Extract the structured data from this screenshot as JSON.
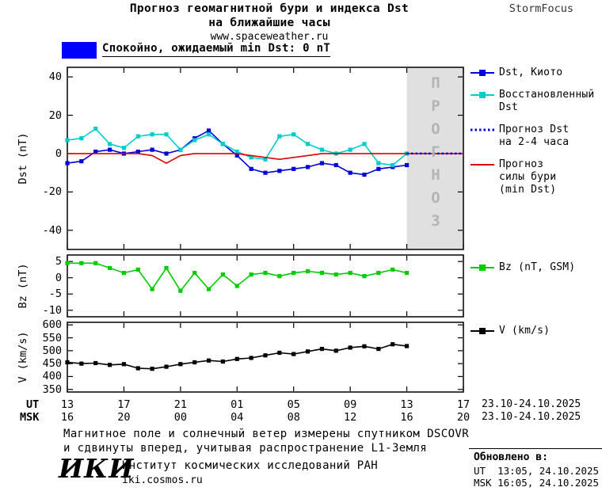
{
  "header": {
    "title_line1": "Прогноз геомагнитной бури и индекса Dst",
    "title_line2": "на ближайшие часы",
    "website": "www.spaceweather.ru",
    "brand": "StormFocus"
  },
  "banner": {
    "label": "Спокойно, ожидаемый min Dst: 0 nT",
    "color": "#0000ff"
  },
  "forecast": {
    "label": "ПРОГНОЗ",
    "region_color": "#e0e0e0",
    "text_color": "#b4b4b4"
  },
  "chart_data": [
    {
      "id": "dst",
      "type": "line",
      "title": "",
      "xlabel": "",
      "ylabel": "Dst (nT)",
      "ylim": [
        -50,
        45
      ],
      "yticks": [
        40,
        20,
        0,
        -20,
        -40
      ],
      "xlim": [
        0,
        28
      ],
      "xticks": [
        0,
        4,
        8,
        12,
        16,
        20,
        24,
        28
      ],
      "grid": false,
      "legend_position": "right",
      "forecast_region": {
        "x0": 24,
        "x1": 28
      },
      "series": [
        {
          "id": "dst_kyoto",
          "name": "Dst, Киото",
          "color": "#0000dd",
          "marker": "square",
          "x": [
            0,
            1,
            2,
            3,
            4,
            5,
            6,
            7,
            8,
            9,
            10,
            11,
            12,
            13,
            14,
            15,
            16,
            17,
            18,
            19,
            20,
            21,
            22,
            23,
            24
          ],
          "values": [
            -5,
            -4,
            1,
            2,
            0,
            1,
            2,
            0,
            2,
            8,
            12,
            5,
            -1,
            -8,
            -10,
            -9,
            -8,
            -7,
            -5,
            -6,
            -10,
            -11,
            -8,
            -7,
            -6
          ]
        },
        {
          "id": "dst_restored",
          "name": "Восстановленный Dst",
          "color": "#00cccc",
          "marker": "square",
          "x": [
            0,
            1,
            2,
            3,
            4,
            5,
            6,
            7,
            8,
            9,
            10,
            11,
            12,
            13,
            14,
            15,
            16,
            17,
            18,
            19,
            20,
            21,
            22,
            23,
            24
          ],
          "values": [
            7,
            8,
            13,
            5,
            3,
            9,
            10,
            10,
            2,
            7,
            10,
            5,
            1,
            -2,
            -3,
            9,
            10,
            5,
            2,
            0,
            2,
            5,
            -5,
            -6,
            0
          ]
        },
        {
          "id": "storm_forecast",
          "name": "Прогноз силы бури (min Dst)",
          "color": "#dd0000",
          "marker": "none",
          "x": [
            0,
            1,
            2,
            3,
            4,
            5,
            6,
            7,
            8,
            9,
            10,
            11,
            12,
            13,
            14,
            15,
            16,
            17,
            18,
            19,
            20,
            21,
            22,
            23,
            24,
            25,
            26,
            27,
            28
          ],
          "values": [
            0,
            0,
            0,
            0,
            0,
            0,
            -1,
            -5,
            -1,
            0,
            0,
            0,
            0,
            -1,
            -2,
            -3,
            -2,
            -1,
            0,
            0,
            0,
            0,
            0,
            0,
            0,
            0,
            0,
            0,
            0
          ]
        },
        {
          "id": "dst_forecast",
          "name": "Прогноз Dst на 2-4 часа",
          "color": "#0000dd",
          "marker": "none",
          "dash": "dotted",
          "x": [
            24,
            25,
            26,
            27,
            28
          ],
          "values": [
            0,
            0,
            0,
            0,
            0
          ]
        }
      ]
    },
    {
      "id": "bz",
      "type": "line",
      "title": "",
      "xlabel": "",
      "ylabel": "Bz (nT)",
      "ylim": [
        -12,
        7
      ],
      "yticks": [
        5,
        0,
        -5,
        -10
      ],
      "xlim": [
        0,
        28
      ],
      "xticks": [
        0,
        4,
        8,
        12,
        16,
        20,
        24,
        28
      ],
      "grid": false,
      "legend_position": "right",
      "series": [
        {
          "id": "bz",
          "name": "Bz (nT, GSM)",
          "color": "#00cc00",
          "marker": "square",
          "x": [
            0,
            1,
            2,
            3,
            4,
            5,
            6,
            7,
            8,
            9,
            10,
            11,
            12,
            13,
            14,
            15,
            16,
            17,
            18,
            19,
            20,
            21,
            22,
            23,
            24
          ],
          "values": [
            4.5,
            4.5,
            4.5,
            3,
            1.5,
            2.5,
            -3.5,
            3,
            -4,
            1.5,
            -3.5,
            1,
            -2.5,
            1,
            1.5,
            0.5,
            1.5,
            2,
            1.5,
            1,
            1.5,
            0.5,
            1.5,
            2.5,
            1.5
          ]
        }
      ]
    },
    {
      "id": "v",
      "type": "line",
      "title": "",
      "xlabel": "",
      "ylabel": "V (km/s)",
      "ylim": [
        340,
        610
      ],
      "yticks": [
        600,
        550,
        500,
        450,
        400,
        350
      ],
      "xlim": [
        0,
        28
      ],
      "xticks": [
        0,
        4,
        8,
        12,
        16,
        20,
        24,
        28
      ],
      "grid": false,
      "legend_position": "right",
      "series": [
        {
          "id": "v",
          "name": "V (km/s)",
          "color": "#000000",
          "marker": "square",
          "x": [
            0,
            1,
            2,
            3,
            4,
            5,
            6,
            7,
            8,
            9,
            10,
            11,
            12,
            13,
            14,
            15,
            16,
            17,
            18,
            19,
            20,
            21,
            22,
            23,
            24
          ],
          "values": [
            455,
            450,
            452,
            445,
            448,
            432,
            430,
            438,
            448,
            455,
            462,
            458,
            468,
            472,
            482,
            492,
            487,
            497,
            507,
            500,
            512,
            517,
            507,
            525,
            518
          ]
        }
      ]
    }
  ],
  "legends": {
    "dst": [
      {
        "lines": [
          "Dst, Киото"
        ],
        "color": "#0000dd",
        "style": "square"
      },
      {
        "lines": [
          "Восстановленный",
          "Dst"
        ],
        "color": "#00cccc",
        "style": "square"
      },
      {
        "lines": [
          "Прогноз Dst",
          "на 2-4 часа"
        ],
        "color": "#0000dd",
        "style": "dotted"
      },
      {
        "lines": [
          "Прогноз",
          "силы бури",
          "(min Dst)"
        ],
        "color": "#dd0000",
        "style": "line"
      }
    ],
    "bz": [
      {
        "lines": [
          "Bz (nT, GSM)"
        ],
        "color": "#00cc00",
        "style": "square"
      }
    ],
    "v": [
      {
        "lines": [
          "V (km/s)"
        ],
        "color": "#000000",
        "style": "square"
      }
    ]
  },
  "xaxis": {
    "ut_label": "UT",
    "msk_label": "MSK",
    "ut_ticks": [
      "13",
      "17",
      "21",
      "01",
      "05",
      "09",
      "13",
      "17"
    ],
    "msk_ticks": [
      "16",
      "20",
      "00",
      "04",
      "08",
      "12",
      "16",
      "20"
    ],
    "ut_date": "23.10-24.10.2025",
    "msk_date": "23.10-24.10.2025"
  },
  "footer": {
    "note_line1": "Магнитное поле и солнечный ветер измерены спутником DSCOVR",
    "note_line2": "и сдвинуты вперед, учитывая распространение L1-Земля",
    "logo": "ИКИ",
    "institute": "Институт космических исследований РАН",
    "site": "iki.cosmos.ru",
    "updated_label": "Обновлено в:",
    "updated_ut": "UT  13:05, 24.10.2025",
    "updated_msk": "MSK 16:05, 24.10.2025"
  }
}
